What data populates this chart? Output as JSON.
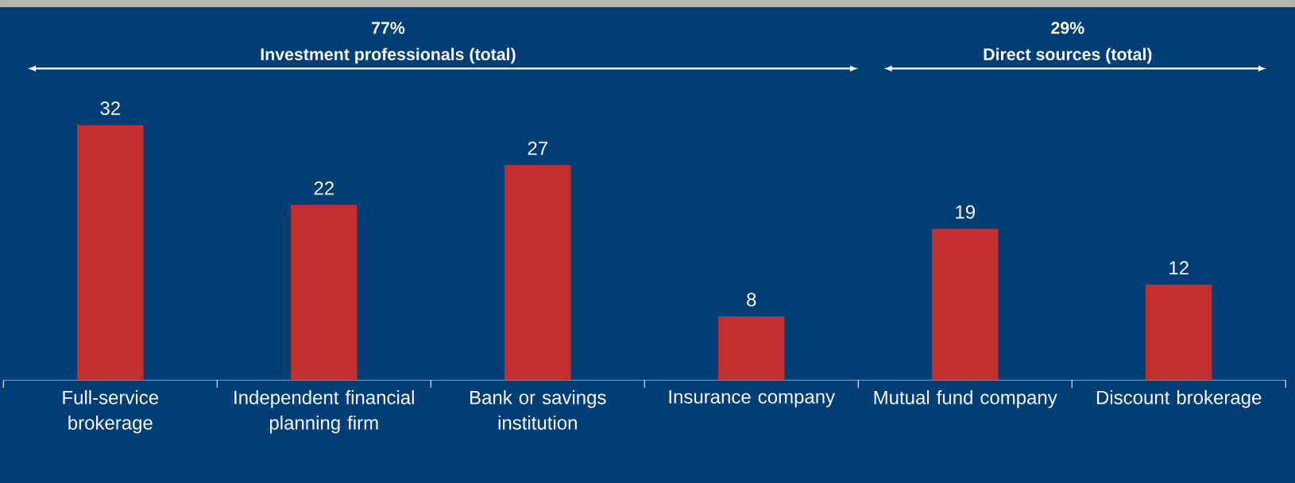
{
  "chart_data": {
    "type": "bar",
    "categories": [
      "Full-service brokerage",
      "Independent financial planning firm",
      "Bank or savings institution",
      "Insurance company",
      "Mutual fund company",
      "Discount brokerage"
    ],
    "values": [
      32,
      22,
      27,
      8,
      19,
      12
    ],
    "color": "#c32f2f",
    "data_labels": true,
    "annotations": [
      "77%",
      "Investment professionals (total)",
      "29%",
      "Direct sources (total)"
    ]
  }
}
